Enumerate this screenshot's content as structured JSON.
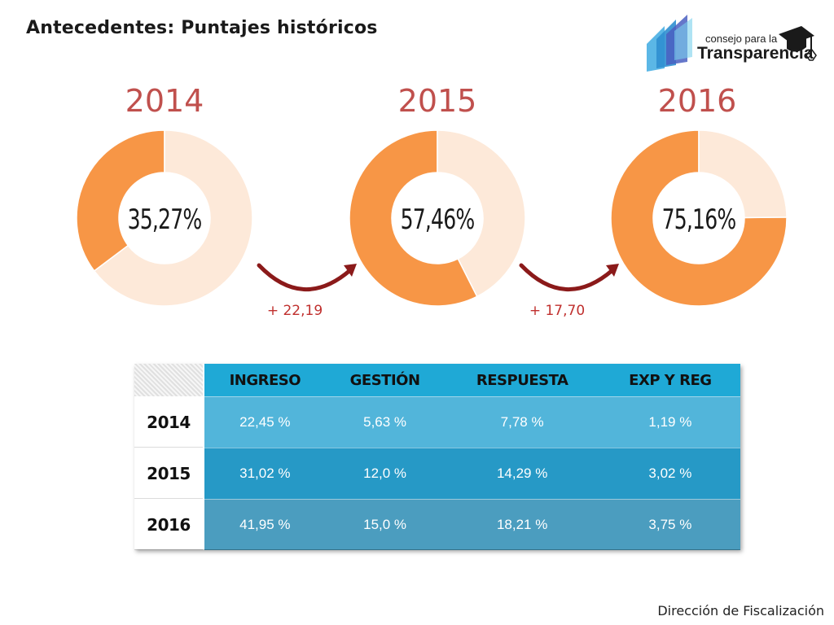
{
  "title": "Antecedentes: Puntajes históricos",
  "logo": {
    "small_text": "consejo para la",
    "big_text": "Transparencia"
  },
  "colors": {
    "accent_orange": "#f79646",
    "remainder_fill": "#fde9d9",
    "year_red": "#c0504d",
    "arrow_dark_red": "#8b1a1a",
    "table_header": "#1fa9d6"
  },
  "chart_data": [
    {
      "type": "pie",
      "title": "2014",
      "value_label": "35,27%",
      "values": [
        35.27,
        64.73
      ]
    },
    {
      "type": "pie",
      "title": "2015",
      "value_label": "57,46%",
      "values": [
        57.46,
        42.54
      ]
    },
    {
      "type": "pie",
      "title": "2016",
      "value_label": "75,16%",
      "values": [
        75.16,
        24.84
      ]
    }
  ],
  "deltas": [
    "+ 22,19",
    "+ 17,70"
  ],
  "table": {
    "columns": [
      "INGRESO",
      "GESTIÓN",
      "RESPUESTA",
      "EXP Y REG"
    ],
    "rows": [
      {
        "year": "2014",
        "values": [
          "22,45 %",
          "5,63 %",
          "7,78 %",
          "1,19 %"
        ]
      },
      {
        "year": "2015",
        "values": [
          "31,02 %",
          "12,0 %",
          "14,29 %",
          "3,02 %"
        ]
      },
      {
        "year": "2016",
        "values": [
          "41,95 %",
          "15,0 %",
          "18,21 %",
          "3,75 %"
        ]
      }
    ]
  },
  "footer": "Dirección de Fiscalización"
}
